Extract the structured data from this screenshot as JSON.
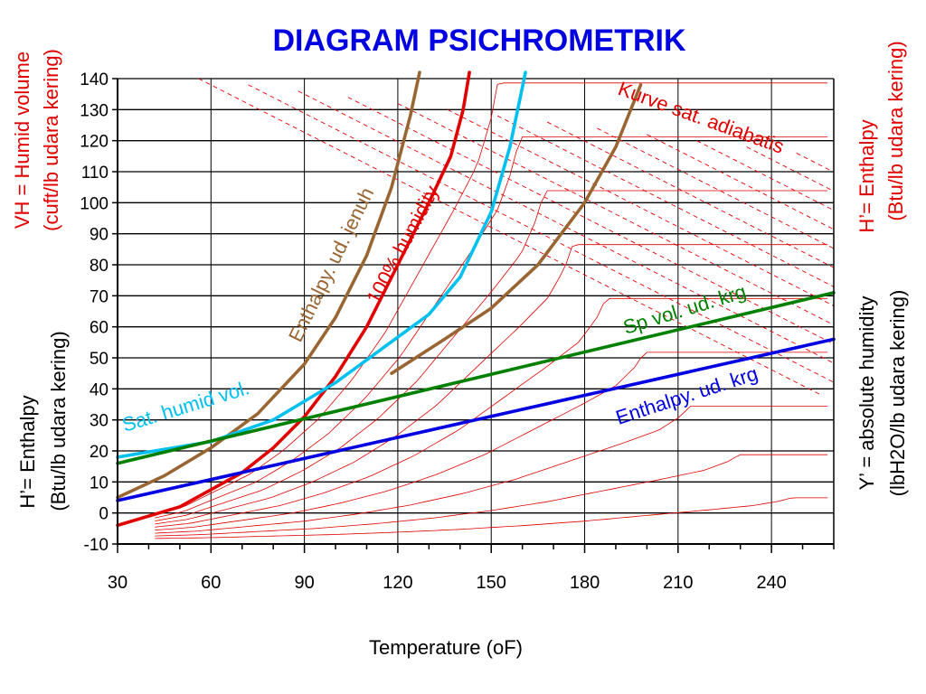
{
  "chart_data": {
    "type": "line",
    "title": "DIAGRAM PSICHROMETRIK",
    "xlabel": "Temperature (oF)",
    "xlim": [
      30,
      260
    ],
    "ylim": [
      -10,
      140
    ],
    "x_ticks": [
      "30",
      "60",
      "90",
      "120",
      "150",
      "180",
      "210",
      "240"
    ],
    "y_ticks": [
      "-10",
      "0",
      "10",
      "20",
      "30",
      "40",
      "50",
      "60",
      "70",
      "80",
      "90",
      "100",
      "110",
      "120",
      "130",
      "140"
    ],
    "grid": true,
    "left_axis_labels": {
      "top": "VH = Humid volume",
      "top_line2": "(cuft/lb udara kering)",
      "bottom": "H’= Enthalpy",
      "bottom_line2": "(Btu/lb udara kering)"
    },
    "right_axis_labels": {
      "top": "H’= Enthalpy",
      "top_line2": "(Btu/lb udara kering)",
      "bottom": "Y’ = absolute humidity",
      "bottom_line2": "(lbH2O/lb udara kering)"
    },
    "annotations": [
      {
        "text": "Kurve sat. adiabatis",
        "color": "#e00000"
      },
      {
        "text": "Enthalpy. ud. jenuh",
        "color": "#996633"
      },
      {
        "text": "100% humidity",
        "color": "#e00000"
      },
      {
        "text": "Sat. humid vol.",
        "color": "#00c0f0"
      },
      {
        "text": "Sp vol. ud. krg",
        "color": "#008000"
      },
      {
        "text": "Enthalpy. ud. krg",
        "color": "#0000e0"
      }
    ],
    "series": [
      {
        "name": "Enthalpy. ud. jenuh",
        "color": "#996633",
        "x": [
          30,
          45,
          60,
          75,
          90,
          100,
          110,
          118,
          124,
          127
        ],
        "y": [
          5,
          12,
          21,
          32,
          48,
          63,
          83,
          105,
          128,
          142
        ]
      },
      {
        "name": "100% humidity",
        "color": "#e00000",
        "x": [
          30,
          50,
          70,
          80,
          90,
          100,
          110,
          120,
          130,
          137,
          141,
          143
        ],
        "y": [
          -4,
          2,
          13,
          21,
          31,
          44,
          60,
          80,
          100,
          115,
          130,
          142
        ]
      },
      {
        "name": "Sat. humid vol.",
        "color": "#00c0f0",
        "x": [
          30,
          60,
          80,
          100,
          115,
          130,
          140,
          150,
          156,
          161
        ],
        "y": [
          18,
          23,
          30,
          42,
          53,
          64,
          76,
          97,
          118,
          142
        ]
      },
      {
        "name": "",
        "color": "#996633",
        "x": [
          118,
          135,
          150,
          165,
          180,
          190,
          198
        ],
        "y": [
          45,
          56,
          66,
          80,
          100,
          118,
          138
        ]
      },
      {
        "name": "Sp vol. ud. krg",
        "color": "#008000",
        "x": [
          30,
          260
        ],
        "y": [
          16,
          71
        ]
      },
      {
        "name": "Enthalpy. ud. krg",
        "color": "#0000e0",
        "x": [
          30,
          260
        ],
        "y": [
          4,
          56
        ]
      }
    ]
  }
}
